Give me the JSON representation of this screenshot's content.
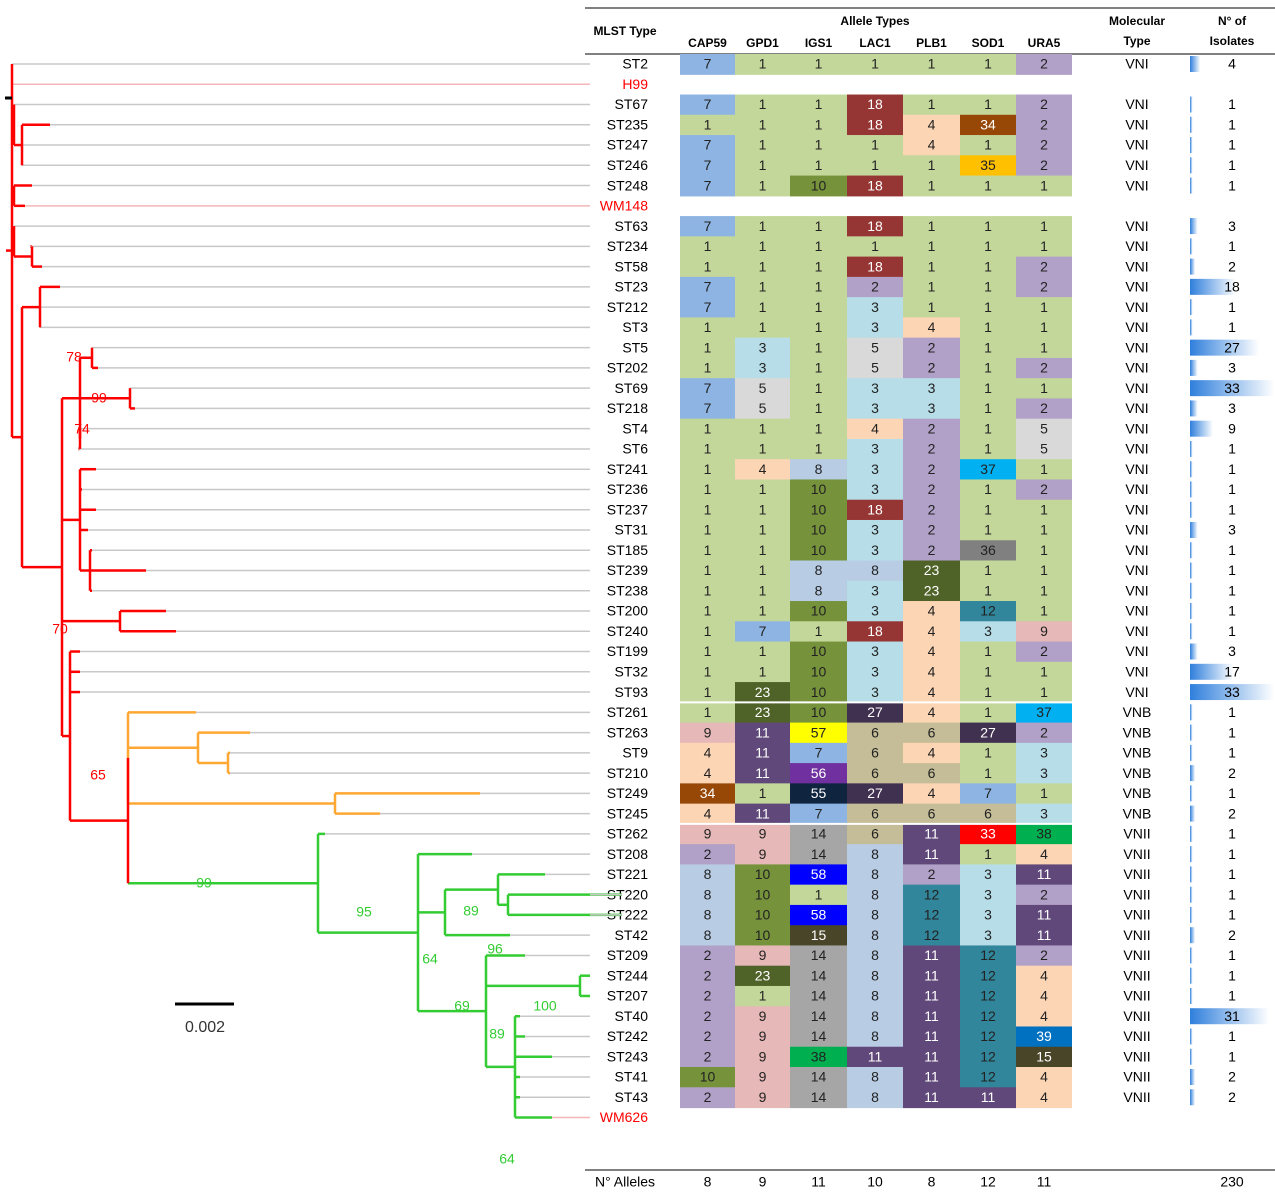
{
  "header": {
    "mlst_type": "MLST Type",
    "allele_types": "Allele Types",
    "genes": [
      "CAP59",
      "GPD1",
      "IGS1",
      "LAC1",
      "PLB1",
      "SOD1",
      "URA5"
    ],
    "molecular_type": [
      "Molecular",
      "Type"
    ],
    "isolates": [
      "N° of",
      "Isolates"
    ]
  },
  "rows": [
    {
      "name": "ST2",
      "alleles": [
        7,
        1,
        1,
        1,
        1,
        1,
        2
      ],
      "type": "VNI",
      "isolates": 4
    },
    {
      "name": "H99",
      "reference": true
    },
    {
      "name": "ST67",
      "alleles": [
        7,
        1,
        1,
        18,
        1,
        1,
        2
      ],
      "type": "VNI",
      "isolates": 1
    },
    {
      "name": "ST235",
      "alleles": [
        1,
        1,
        1,
        18,
        4,
        34,
        2
      ],
      "type": "VNI",
      "isolates": 1
    },
    {
      "name": "ST247",
      "alleles": [
        7,
        1,
        1,
        1,
        4,
        1,
        2
      ],
      "type": "VNI",
      "isolates": 1
    },
    {
      "name": "ST246",
      "alleles": [
        7,
        1,
        1,
        1,
        1,
        35,
        2
      ],
      "type": "VNI",
      "isolates": 1
    },
    {
      "name": "ST248",
      "alleles": [
        7,
        1,
        10,
        18,
        1,
        1,
        1
      ],
      "type": "VNI",
      "isolates": 1
    },
    {
      "name": "WM148",
      "reference": true
    },
    {
      "name": "ST63",
      "alleles": [
        7,
        1,
        1,
        18,
        1,
        1,
        1
      ],
      "type": "VNI",
      "isolates": 3
    },
    {
      "name": "ST234",
      "alleles": [
        1,
        1,
        1,
        1,
        1,
        1,
        1
      ],
      "type": "VNI",
      "isolates": 1
    },
    {
      "name": "ST58",
      "alleles": [
        1,
        1,
        1,
        18,
        1,
        1,
        2
      ],
      "type": "VNI",
      "isolates": 2
    },
    {
      "name": "ST23",
      "alleles": [
        7,
        1,
        1,
        2,
        1,
        1,
        2
      ],
      "type": "VNI",
      "isolates": 18
    },
    {
      "name": "ST212",
      "alleles": [
        7,
        1,
        1,
        3,
        1,
        1,
        1
      ],
      "type": "VNI",
      "isolates": 1
    },
    {
      "name": "ST3",
      "alleles": [
        1,
        1,
        1,
        3,
        4,
        1,
        1
      ],
      "type": "VNI",
      "isolates": 1
    },
    {
      "name": "ST5",
      "alleles": [
        1,
        3,
        1,
        5,
        2,
        1,
        1
      ],
      "type": "VNI",
      "isolates": 27
    },
    {
      "name": "ST202",
      "alleles": [
        1,
        3,
        1,
        5,
        2,
        1,
        2
      ],
      "type": "VNI",
      "isolates": 3
    },
    {
      "name": "ST69",
      "alleles": [
        7,
        5,
        1,
        3,
        3,
        1,
        1
      ],
      "type": "VNI",
      "isolates": 33
    },
    {
      "name": "ST218",
      "alleles": [
        7,
        5,
        1,
        3,
        3,
        1,
        2
      ],
      "type": "VNI",
      "isolates": 3
    },
    {
      "name": "ST4",
      "alleles": [
        1,
        1,
        1,
        4,
        2,
        1,
        5
      ],
      "type": "VNI",
      "isolates": 9
    },
    {
      "name": "ST6",
      "alleles": [
        1,
        1,
        1,
        3,
        2,
        1,
        5
      ],
      "type": "VNI",
      "isolates": 1
    },
    {
      "name": "ST241",
      "alleles": [
        1,
        4,
        8,
        3,
        2,
        37,
        1
      ],
      "type": "VNI",
      "isolates": 1
    },
    {
      "name": "ST236",
      "alleles": [
        1,
        1,
        10,
        3,
        2,
        1,
        2
      ],
      "type": "VNI",
      "isolates": 1
    },
    {
      "name": "ST237",
      "alleles": [
        1,
        1,
        10,
        18,
        2,
        1,
        1
      ],
      "type": "VNI",
      "isolates": 1
    },
    {
      "name": "ST31",
      "alleles": [
        1,
        1,
        10,
        3,
        2,
        1,
        1
      ],
      "type": "VNI",
      "isolates": 3
    },
    {
      "name": "ST185",
      "alleles": [
        1,
        1,
        10,
        3,
        2,
        36,
        1
      ],
      "type": "VNI",
      "isolates": 1
    },
    {
      "name": "ST239",
      "alleles": [
        1,
        1,
        8,
        8,
        23,
        1,
        1
      ],
      "type": "VNI",
      "isolates": 1
    },
    {
      "name": "ST238",
      "alleles": [
        1,
        1,
        8,
        3,
        23,
        1,
        1
      ],
      "type": "VNI",
      "isolates": 1
    },
    {
      "name": "ST200",
      "alleles": [
        1,
        1,
        10,
        3,
        4,
        12,
        1
      ],
      "type": "VNI",
      "isolates": 1
    },
    {
      "name": "ST240",
      "alleles": [
        1,
        7,
        1,
        18,
        4,
        3,
        9
      ],
      "type": "VNI",
      "isolates": 1
    },
    {
      "name": "ST199",
      "alleles": [
        1,
        1,
        10,
        3,
        4,
        1,
        2
      ],
      "type": "VNI",
      "isolates": 3
    },
    {
      "name": "ST32",
      "alleles": [
        1,
        1,
        10,
        3,
        4,
        1,
        1
      ],
      "type": "VNI",
      "isolates": 17
    },
    {
      "name": "ST93",
      "alleles": [
        1,
        23,
        10,
        3,
        4,
        1,
        1
      ],
      "type": "VNI",
      "isolates": 33
    },
    {
      "name": "ST261",
      "alleles": [
        1,
        23,
        10,
        27,
        4,
        1,
        37
      ],
      "type": "VNB",
      "isolates": 1
    },
    {
      "name": "ST263",
      "alleles": [
        9,
        11,
        57,
        6,
        6,
        27,
        2
      ],
      "type": "VNB",
      "isolates": 1
    },
    {
      "name": "ST9",
      "alleles": [
        4,
        11,
        7,
        6,
        4,
        1,
        3
      ],
      "type": "VNB",
      "isolates": 1
    },
    {
      "name": "ST210",
      "alleles": [
        4,
        11,
        56,
        6,
        6,
        1,
        3
      ],
      "type": "VNB",
      "isolates": 2
    },
    {
      "name": "ST249",
      "alleles": [
        34,
        1,
        55,
        27,
        4,
        7,
        1
      ],
      "type": "VNB",
      "isolates": 1
    },
    {
      "name": "ST245",
      "alleles": [
        4,
        11,
        7,
        6,
        6,
        6,
        3
      ],
      "type": "VNB",
      "isolates": 2
    },
    {
      "name": "ST262",
      "alleles": [
        9,
        9,
        14,
        6,
        11,
        33,
        38
      ],
      "type": "VNII",
      "isolates": 1
    },
    {
      "name": "ST208",
      "alleles": [
        2,
        9,
        14,
        8,
        11,
        1,
        4
      ],
      "type": "VNII",
      "isolates": 1
    },
    {
      "name": "ST221",
      "alleles": [
        8,
        10,
        58,
        8,
        2,
        3,
        11
      ],
      "type": "VNII",
      "isolates": 1
    },
    {
      "name": "ST220",
      "alleles": [
        8,
        10,
        1,
        8,
        12,
        3,
        2
      ],
      "type": "VNII",
      "isolates": 1
    },
    {
      "name": "ST222",
      "alleles": [
        8,
        10,
        58,
        8,
        12,
        3,
        11
      ],
      "type": "VNII",
      "isolates": 1
    },
    {
      "name": "ST42",
      "alleles": [
        8,
        10,
        15,
        8,
        12,
        3,
        11
      ],
      "type": "VNII",
      "isolates": 2
    },
    {
      "name": "ST209",
      "alleles": [
        2,
        9,
        14,
        8,
        11,
        12,
        2
      ],
      "type": "VNII",
      "isolates": 1
    },
    {
      "name": "ST244",
      "alleles": [
        2,
        23,
        14,
        8,
        11,
        12,
        4
      ],
      "type": "VNII",
      "isolates": 1
    },
    {
      "name": "ST207",
      "alleles": [
        2,
        1,
        14,
        8,
        11,
        12,
        4
      ],
      "type": "VNII",
      "isolates": 1
    },
    {
      "name": "ST40",
      "alleles": [
        2,
        9,
        14,
        8,
        11,
        12,
        4
      ],
      "type": "VNII",
      "isolates": 31
    },
    {
      "name": "ST242",
      "alleles": [
        2,
        9,
        14,
        8,
        11,
        12,
        39
      ],
      "type": "VNII",
      "isolates": 1
    },
    {
      "name": "ST243",
      "alleles": [
        2,
        9,
        38,
        11,
        11,
        12,
        15
      ],
      "type": "VNII",
      "isolates": 1
    },
    {
      "name": "ST41",
      "alleles": [
        10,
        9,
        14,
        8,
        11,
        12,
        4
      ],
      "type": "VNII",
      "isolates": 2
    },
    {
      "name": "ST43",
      "alleles": [
        2,
        9,
        14,
        8,
        11,
        11,
        4
      ],
      "type": "VNII",
      "isolates": 2
    },
    {
      "name": "WM626",
      "reference": true
    }
  ],
  "footer": {
    "label": "N° Alleles",
    "counts": [
      8,
      9,
      11,
      10,
      8,
      12,
      11
    ],
    "total": 230
  },
  "allele_colors": {
    "1": "#c4d79b",
    "2": "#b1a0c7",
    "3": "#b7dee8",
    "4": "#fcd5b4",
    "5": "#d9d9d9",
    "6": "#c4bd97",
    "7": "#8db4e2",
    "8": "#b8cce4",
    "9": "#e6b8b7",
    "10": "#76933c",
    "11": "#60497a",
    "12": "#31869b",
    "14": "#a6a6a6",
    "15": "#494529",
    "18": "#963634",
    "23": "#4f6228",
    "27": "#403151",
    "33": "#ff0000",
    "34": "#974706",
    "35": "#ffc000",
    "36": "#808080",
    "37": "#00b0f0",
    "38": "#00b050",
    "39": "#0070c0",
    "55": "#0f243e",
    "56": "#7030a0",
    "57": "#ffff00",
    "58": "#0000ff"
  },
  "isolate_bar_color": "#2f7fdc",
  "tree": {
    "support": [
      {
        "value": 78,
        "color": "#ff0000"
      },
      {
        "value": 99,
        "color": "#ff0000"
      },
      {
        "value": 74,
        "color": "#ff0000"
      },
      {
        "value": 70,
        "color": "#ff0000"
      },
      {
        "value": 65,
        "color": "#ff0000"
      },
      {
        "value": 99,
        "color": "#33cc33"
      },
      {
        "value": 95,
        "color": "#33cc33"
      },
      {
        "value": 89,
        "color": "#33cc33"
      },
      {
        "value": 96,
        "color": "#33cc33"
      },
      {
        "value": 64,
        "color": "#33cc33"
      },
      {
        "value": 69,
        "color": "#33cc33"
      },
      {
        "value": 100,
        "color": "#33cc33"
      },
      {
        "value": 89,
        "color": "#33cc33"
      },
      {
        "value": 64,
        "color": "#33cc33"
      }
    ],
    "scale_bar": "0.002"
  }
}
